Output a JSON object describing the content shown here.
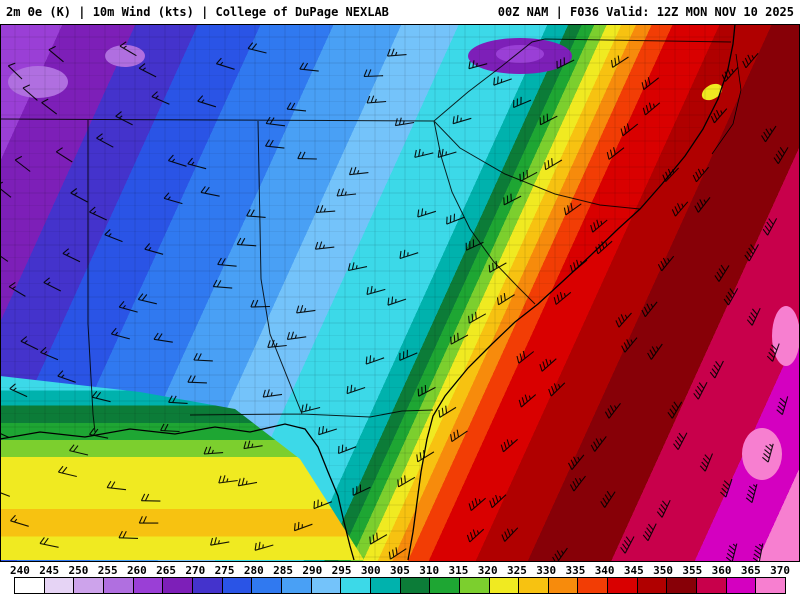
{
  "header": {
    "left": "2m Θe (K) | 10m Wind (kts) | College of DuPage NEXLAB",
    "right": "00Z NAM | F036 Valid: 12Z MON NOV 10 2025"
  },
  "colorbar": {
    "ticks": [
      "240",
      "245",
      "250",
      "255",
      "260",
      "265",
      "270",
      "275",
      "280",
      "285",
      "290",
      "295",
      "300",
      "305",
      "310",
      "315",
      "320",
      "325",
      "330",
      "335",
      "340",
      "345",
      "350",
      "355",
      "360",
      "365",
      "370"
    ],
    "colors": [
      "#ffffff",
      "#e6d4f5",
      "#cda3eb",
      "#b06fe0",
      "#9a3fd6",
      "#7d1fb8",
      "#4433cc",
      "#2a54e6",
      "#3079f0",
      "#49a0f5",
      "#74c3fa",
      "#3cd9e8",
      "#00b2ad",
      "#0c7c38",
      "#1ea633",
      "#7ccf2e",
      "#f0ea21",
      "#f7c211",
      "#f78b0c",
      "#f23d05",
      "#d90000",
      "#b00000",
      "#870007",
      "#c8004b",
      "#d400c0",
      "#f77fd0"
    ]
  },
  "map": {
    "border_color": "#000000",
    "barb_color": "#000000"
  }
}
